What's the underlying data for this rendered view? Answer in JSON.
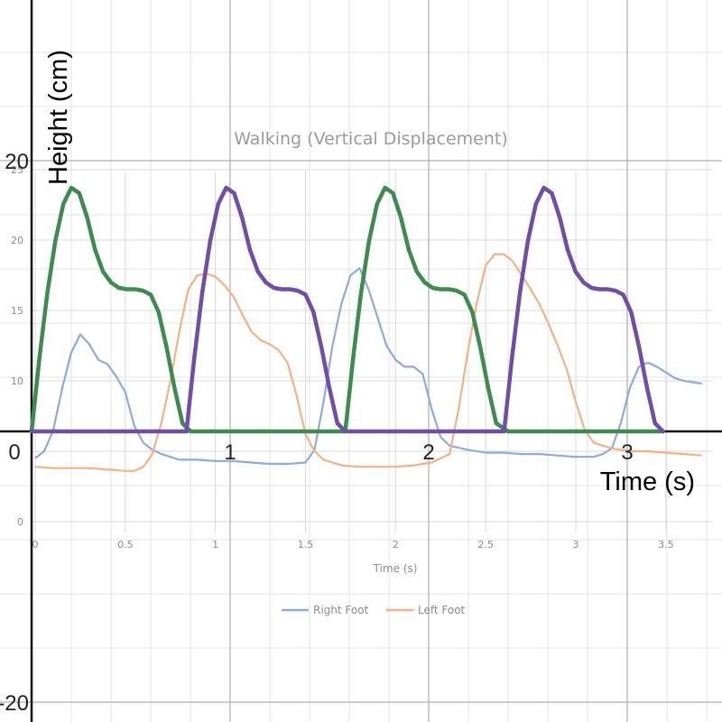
{
  "chart_data": [
    {
      "type": "line",
      "title": "Walking (Vertical Displacement)",
      "xlabel": "Time (s)",
      "ylabel": "",
      "xlim": [
        0,
        3.7
      ],
      "ylim": [
        0,
        25
      ],
      "x_ticks": [
        "0",
        "0.5",
        "1",
        "1.5",
        "2",
        "2.5",
        "3",
        "3.5"
      ],
      "y_ticks": [
        "0",
        "10",
        "15",
        "20",
        "25"
      ],
      "legend_position": "bottom",
      "grid": true,
      "series": [
        {
          "name": "Right Foot",
          "color": "#8faadc",
          "x": [
            0,
            0.05,
            0.1,
            0.15,
            0.2,
            0.25,
            0.3,
            0.35,
            0.4,
            0.45,
            0.5,
            0.55,
            0.6,
            0.65,
            0.7,
            0.8,
            0.9,
            1.0,
            1.1,
            1.2,
            1.3,
            1.4,
            1.5,
            1.55,
            1.6,
            1.65,
            1.7,
            1.75,
            1.8,
            1.85,
            1.9,
            1.95,
            2.0,
            2.05,
            2.1,
            2.15,
            2.2,
            2.25,
            2.3,
            2.4,
            2.5,
            2.6,
            2.7,
            2.8,
            2.9,
            3.0,
            3.1,
            3.15,
            3.2,
            3.25,
            3.3,
            3.35,
            3.4,
            3.45,
            3.5,
            3.55,
            3.6,
            3.7
          ],
          "y": [
            4.5,
            5,
            6.5,
            9.5,
            12,
            13.3,
            12.6,
            11.5,
            11.2,
            10.3,
            9.2,
            6.8,
            5.6,
            5.1,
            4.8,
            4.4,
            4.4,
            4.3,
            4.3,
            4.2,
            4.1,
            4.1,
            4.2,
            5.1,
            8.5,
            12.5,
            15.5,
            17.5,
            18.0,
            16.5,
            14.5,
            12.5,
            11.5,
            11.0,
            11.0,
            10.5,
            8.0,
            6.0,
            5.4,
            5.1,
            4.9,
            4.9,
            4.8,
            4.8,
            4.7,
            4.6,
            4.6,
            4.8,
            5.2,
            7.0,
            9.5,
            11.0,
            11.3,
            11.0,
            10.6,
            10.2,
            10.0,
            9.8
          ]
        },
        {
          "name": "Left Foot",
          "color": "#f4b183",
          "x": [
            0,
            0.1,
            0.2,
            0.3,
            0.4,
            0.5,
            0.55,
            0.6,
            0.65,
            0.7,
            0.75,
            0.8,
            0.85,
            0.9,
            0.95,
            1.0,
            1.05,
            1.1,
            1.15,
            1.2,
            1.25,
            1.3,
            1.35,
            1.4,
            1.45,
            1.5,
            1.55,
            1.6,
            1.7,
            1.8,
            1.9,
            2.0,
            2.1,
            2.2,
            2.3,
            2.35,
            2.4,
            2.45,
            2.5,
            2.55,
            2.6,
            2.65,
            2.7,
            2.75,
            2.8,
            2.85,
            2.9,
            2.95,
            3.0,
            3.05,
            3.1,
            3.2,
            3.3,
            3.4,
            3.5,
            3.6,
            3.7
          ],
          "y": [
            3.9,
            3.8,
            3.8,
            3.8,
            3.7,
            3.6,
            3.6,
            3.9,
            4.8,
            7.0,
            10.0,
            13.5,
            16.5,
            17.5,
            17.6,
            17.4,
            16.8,
            16.0,
            14.7,
            13.5,
            12.9,
            12.6,
            12.2,
            11.3,
            9.0,
            6.2,
            5.0,
            4.4,
            4.0,
            3.9,
            3.9,
            3.9,
            4.0,
            4.2,
            4.8,
            8.0,
            12.0,
            15.5,
            18.2,
            19.0,
            19.0,
            18.5,
            17.5,
            16.5,
            15.4,
            14.0,
            12.5,
            10.8,
            8.5,
            6.5,
            5.6,
            5.2,
            5.0,
            5.0,
            4.9,
            4.8,
            4.7
          ]
        }
      ]
    },
    {
      "type": "line",
      "xlabel": "Time (s)",
      "ylabel": "Height (cm)",
      "xlim": [
        -0.15,
        3.5
      ],
      "ylim": [
        -20.5,
        33
      ],
      "x_ticks": [
        "0",
        "1",
        "2",
        "3"
      ],
      "y_ticks": [
        "-20",
        "20"
      ],
      "grid": true,
      "series": [
        {
          "color": "#3d8b4f",
          "x": [
            0,
            0.04,
            0.08,
            0.12,
            0.16,
            0.2,
            0.24,
            0.28,
            0.32,
            0.36,
            0.4,
            0.44,
            0.48,
            0.52,
            0.56,
            0.6,
            0.64,
            0.68,
            0.72,
            0.76,
            0.8,
            0.9,
            1.0,
            1.1,
            1.2,
            1.3,
            1.4,
            1.5,
            1.58,
            1.62,
            1.66,
            1.7,
            1.74,
            1.78,
            1.82,
            1.86,
            1.9,
            1.94,
            1.98,
            2.02,
            2.06,
            2.1,
            2.14,
            2.18,
            2.22,
            2.26,
            2.3,
            2.34,
            2.4,
            2.5,
            2.6,
            2.7,
            2.8,
            2.9,
            3.0,
            3.1,
            3.18
          ],
          "y": [
            0,
            5.5,
            10.3,
            14.1,
            16.8,
            18.0,
            17.6,
            15.8,
            13.4,
            11.8,
            11.0,
            10.6,
            10.5,
            10.5,
            10.4,
            10.1,
            8.8,
            6.2,
            3.2,
            0.6,
            0,
            0,
            0,
            0,
            0,
            0,
            0,
            0,
            0,
            5.5,
            10.3,
            14.1,
            16.8,
            18.0,
            17.6,
            15.8,
            13.4,
            11.8,
            11.0,
            10.6,
            10.5,
            10.5,
            10.4,
            10.1,
            8.8,
            6.2,
            3.2,
            0.6,
            0,
            0,
            0,
            0,
            0,
            0,
            0,
            0,
            0
          ]
        },
        {
          "color": "#6f4ea9",
          "x": [
            0,
            0.1,
            0.2,
            0.3,
            0.4,
            0.5,
            0.6,
            0.7,
            0.78,
            0.82,
            0.86,
            0.9,
            0.94,
            0.98,
            1.02,
            1.06,
            1.1,
            1.14,
            1.18,
            1.22,
            1.26,
            1.3,
            1.34,
            1.38,
            1.42,
            1.46,
            1.5,
            1.54,
            1.58,
            1.7,
            1.8,
            1.9,
            2.0,
            2.1,
            2.2,
            2.3,
            2.38,
            2.42,
            2.46,
            2.5,
            2.54,
            2.58,
            2.62,
            2.66,
            2.7,
            2.74,
            2.78,
            2.82,
            2.86,
            2.9,
            2.94,
            2.98,
            3.02,
            3.06,
            3.1,
            3.14,
            3.18
          ],
          "y": [
            0,
            0,
            0,
            0,
            0,
            0,
            0,
            0,
            0,
            5.5,
            10.3,
            14.1,
            16.8,
            18.0,
            17.6,
            15.8,
            13.4,
            11.8,
            11.0,
            10.6,
            10.5,
            10.5,
            10.4,
            10.1,
            8.8,
            6.2,
            3.2,
            0.6,
            0,
            0,
            0,
            0,
            0,
            0,
            0,
            0,
            0,
            5.5,
            10.3,
            14.1,
            16.8,
            18.0,
            17.6,
            15.8,
            13.4,
            11.8,
            11.0,
            10.6,
            10.5,
            10.5,
            10.4,
            10.1,
            8.8,
            6.2,
            3.2,
            0.6,
            0
          ]
        }
      ]
    }
  ]
}
